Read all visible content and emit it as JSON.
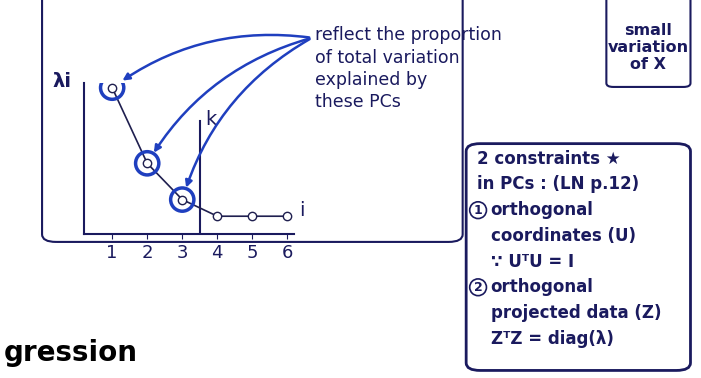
{
  "chart_data": {
    "type": "line",
    "y_label": "λi",
    "x_label": "i",
    "x": [
      1,
      2,
      3,
      4,
      5,
      6
    ],
    "values": [
      0.97,
      0.47,
      0.23,
      0.12,
      0.12,
      0.12
    ],
    "xlim": [
      0.2,
      6.2
    ],
    "ylim": [
      0,
      1
    ],
    "xticks": [
      1,
      2,
      3,
      4,
      5,
      6
    ],
    "yticks": [],
    "tick_labels": "x",
    "color": "#1f1f4f",
    "marker": "o",
    "highlighted_x": [
      1,
      2,
      3
    ],
    "cutoff": {
      "x": 3.5,
      "label": "k"
    },
    "annotation": "reflect the proportion\nof total variation\nexplained by\nthese PCs"
  },
  "notes": {
    "small_box": "small\nvariation\nof X",
    "constraints": {
      "title": [
        "2 constraints ★",
        "in PCs : (LN p.12)"
      ],
      "items": [
        {
          "number": "1",
          "lines": [
            "orthogonal",
            "coordinates (U)",
            "∵ UᵀU = I"
          ]
        },
        {
          "number": "2",
          "lines": [
            "orthogonal",
            "projected data (Z)",
            "ZᵀZ = diag(λ)"
          ]
        }
      ]
    },
    "heading": "gression"
  }
}
